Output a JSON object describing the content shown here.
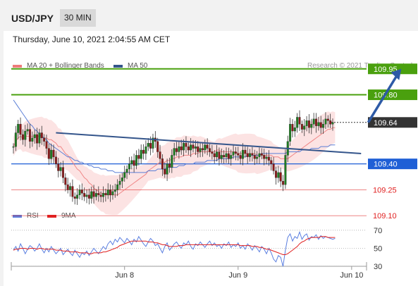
{
  "header": {
    "symbol": "USD/JPY",
    "interval": "30 MIN",
    "datetime": "Thursday, June 10, 2021 2:04:55 AM CET"
  },
  "legend": {
    "bollinger": {
      "label": "MA 20 + Bollinger Bands",
      "color": "#ee7b7b"
    },
    "ma50": {
      "label": "MA 50",
      "color": "#34558b"
    }
  },
  "credit": "Research © 2021 Trading Central",
  "chart_data": {
    "type": "candlestick",
    "price_scale": [
      109.05,
      110.0
    ],
    "current_price": "109.64",
    "levels": [
      {
        "value": 109.95,
        "label": "109.95",
        "kind": "resistance",
        "color": "#4aa00e"
      },
      {
        "value": 109.8,
        "label": "109.80",
        "kind": "resistance",
        "color": "#4aa00e"
      },
      {
        "value": 109.4,
        "label": "109.40",
        "kind": "pivot",
        "color": "#1f5fd6"
      },
      {
        "value": 109.25,
        "label": "109.25",
        "kind": "support",
        "color": "#e02020"
      },
      {
        "value": 109.1,
        "label": "109.10",
        "kind": "support",
        "color": "#e02020"
      }
    ],
    "x_ticks": [
      {
        "label": "Jun 8",
        "index": 47
      },
      {
        "label": "Jun 9",
        "index": 95
      },
      {
        "label": "Jun 10",
        "index": 143
      }
    ],
    "closes": [
      109.5,
      109.58,
      109.63,
      109.57,
      109.54,
      109.59,
      109.6,
      109.53,
      109.55,
      109.57,
      109.52,
      109.58,
      109.55,
      109.53,
      109.49,
      109.43,
      109.48,
      109.44,
      109.4,
      109.36,
      109.38,
      109.32,
      109.28,
      109.25,
      109.27,
      109.21,
      109.2,
      109.22,
      109.25,
      109.23,
      109.21,
      109.22,
      109.2,
      109.24,
      109.21,
      109.23,
      109.22,
      109.21,
      109.23,
      109.22,
      109.25,
      109.22,
      109.24,
      109.25,
      109.28,
      109.3,
      109.32,
      109.35,
      109.37,
      109.4,
      109.42,
      109.39,
      109.45,
      109.43,
      109.48,
      109.46,
      109.5,
      109.52,
      109.49,
      109.55,
      109.53,
      109.47,
      109.43,
      109.37,
      109.34,
      109.4,
      109.38,
      109.45,
      109.49,
      109.47,
      109.5,
      109.48,
      109.52,
      109.5,
      109.48,
      109.51,
      109.49,
      109.5,
      109.47,
      109.49,
      109.48,
      109.51,
      109.49,
      109.47,
      109.46,
      109.44,
      109.47,
      109.43,
      109.45,
      109.44,
      109.46,
      109.43,
      109.45,
      109.47,
      109.46,
      109.45,
      109.43,
      109.48,
      109.46,
      109.44,
      109.46,
      109.45,
      109.43,
      109.44,
      109.46,
      109.45,
      109.43,
      109.44,
      109.42,
      109.4,
      109.36,
      109.32,
      109.35,
      109.3,
      109.28,
      109.45,
      109.53,
      109.63,
      109.59,
      109.61,
      109.67,
      109.63,
      109.6,
      109.62,
      109.65,
      109.61,
      109.63,
      109.66,
      109.62,
      109.64,
      109.61,
      109.63,
      109.66,
      109.65,
      109.63,
      109.64
    ],
    "ma20": [
      109.5,
      109.53,
      109.55,
      109.56,
      109.55,
      109.56,
      109.56,
      109.56,
      109.56,
      109.56,
      109.56,
      109.56,
      109.56,
      109.55,
      109.55,
      109.54,
      109.54,
      109.53,
      109.52,
      109.5,
      109.5,
      109.48,
      109.46,
      109.45,
      109.43,
      109.41,
      109.39,
      109.37,
      109.36,
      109.34,
      109.32,
      109.31,
      109.29,
      109.28,
      109.26,
      109.25,
      109.24,
      109.23,
      109.23,
      109.22,
      109.22,
      109.22,
      109.22,
      109.22,
      109.22,
      109.23,
      109.24,
      109.25,
      109.26,
      109.27,
      109.28,
      109.29,
      109.3,
      109.31,
      109.32,
      109.33,
      109.34,
      109.36,
      109.37,
      109.38,
      109.39,
      109.4,
      109.41,
      109.41,
      109.41,
      109.42,
      109.42,
      109.43,
      109.43,
      109.44,
      109.44,
      109.44,
      109.45,
      109.45,
      109.45,
      109.45,
      109.46,
      109.46,
      109.46,
      109.47,
      109.47,
      109.47,
      109.47,
      109.47,
      109.47,
      109.47,
      109.48,
      109.48,
      109.47,
      109.47,
      109.47,
      109.47,
      109.47,
      109.47,
      109.47,
      109.46,
      109.46,
      109.46,
      109.46,
      109.46,
      109.46,
      109.46,
      109.46,
      109.45,
      109.45,
      109.45,
      109.45,
      109.45,
      109.45,
      109.45,
      109.44,
      109.44,
      109.44,
      109.43,
      109.43,
      109.43,
      109.43,
      109.44,
      109.45,
      109.46,
      109.47,
      109.48,
      109.49,
      109.5,
      109.51,
      109.52,
      109.53,
      109.54,
      109.55,
      109.56,
      109.57,
      109.58,
      109.59,
      109.6,
      109.6,
      109.61,
      109.61
    ],
    "ma50": [
      109.77,
      109.75,
      109.73,
      109.71,
      109.69,
      109.67,
      109.65,
      109.63,
      109.62,
      109.6,
      109.59,
      109.57,
      109.56,
      109.55,
      109.54,
      109.52,
      109.51,
      109.5,
      109.49,
      109.48,
      109.47,
      109.46,
      109.45,
      109.44,
      109.44,
      109.43,
      109.42,
      109.42,
      109.41,
      109.41,
      109.4,
      109.4,
      109.39,
      109.39,
      109.38,
      109.38,
      109.38,
      109.37,
      109.37,
      109.37,
      109.36,
      109.36,
      109.36,
      109.35,
      109.35,
      109.35,
      109.35,
      109.35,
      109.35,
      109.35,
      109.35,
      109.35,
      109.35,
      109.35,
      109.35,
      109.35,
      109.35,
      109.36,
      109.36,
      109.36,
      109.36,
      109.37,
      109.37,
      109.37,
      109.37,
      109.38,
      109.38,
      109.38,
      109.38,
      109.38,
      109.39,
      109.39,
      109.39,
      109.4,
      109.4,
      109.4,
      109.4,
      109.41,
      109.41,
      109.41,
      109.41,
      109.41,
      109.42,
      109.42,
      109.42,
      109.42,
      109.42,
      109.43,
      109.43,
      109.43,
      109.43,
      109.43,
      109.43,
      109.44,
      109.44,
      109.44,
      109.44,
      109.44,
      109.44,
      109.45,
      109.45,
      109.45,
      109.45,
      109.45,
      109.45,
      109.46,
      109.46,
      109.46,
      109.46,
      109.46,
      109.46,
      109.46,
      109.46,
      109.46,
      109.46,
      109.46,
      109.47,
      109.47,
      109.47,
      109.47,
      109.47,
      109.47,
      109.48,
      109.48,
      109.48,
      109.48,
      109.49,
      109.49,
      109.49,
      109.49,
      109.5,
      109.5,
      109.5,
      109.5,
      109.51,
      109.51,
      109.51
    ],
    "trendline": {
      "from": {
        "index": 18,
        "value": 109.58
      },
      "to": {
        "index": 147,
        "value": 109.46
      }
    },
    "forecast_arrow": {
      "from": {
        "index": 150,
        "value": 109.64
      },
      "to": {
        "index": 164,
        "value": 109.95
      }
    },
    "rsi": {
      "legend": [
        {
          "label": "RSI",
          "color": "#5b7fe0"
        },
        {
          "label": "9MA",
          "color": "#e02020"
        }
      ],
      "scale": [
        20,
        80
      ],
      "levels": [
        "70",
        "50",
        "30"
      ],
      "values": [
        48,
        52,
        47,
        55,
        50,
        44,
        49,
        53,
        51,
        47,
        50,
        55,
        49,
        45,
        50,
        46,
        52,
        48,
        44,
        47,
        50,
        43,
        46,
        49,
        45,
        42,
        48,
        44,
        40,
        45,
        43,
        47,
        42,
        46,
        50,
        47,
        44,
        48,
        52,
        49,
        55,
        58,
        54,
        60,
        57,
        62,
        59,
        56,
        61,
        58,
        54,
        60,
        57,
        63,
        59,
        55,
        52,
        57,
        61,
        58,
        53,
        55,
        50,
        45,
        52,
        56,
        48,
        51,
        55,
        57,
        53,
        50,
        56,
        54,
        58,
        52,
        49,
        55,
        53,
        57,
        54,
        51,
        55,
        58,
        53,
        56,
        52,
        54,
        50,
        55,
        53,
        57,
        51,
        54,
        52,
        56,
        50,
        53,
        49,
        55,
        52,
        48,
        53,
        50,
        46,
        52,
        49,
        44,
        50,
        45,
        38,
        35,
        42,
        40,
        30,
        48,
        62,
        66,
        58,
        63,
        61,
        68,
        60,
        64,
        66,
        59,
        63,
        62,
        65,
        60,
        64,
        61,
        63,
        62,
        61,
        60,
        61
      ],
      "ma9": [
        48,
        49,
        49,
        50,
        50,
        50,
        49,
        50,
        50,
        50,
        49,
        50,
        50,
        49,
        49,
        49,
        49,
        49,
        48,
        48,
        48,
        47,
        47,
        47,
        46,
        46,
        46,
        46,
        45,
        45,
        45,
        45,
        44,
        44,
        45,
        45,
        45,
        45,
        46,
        46,
        47,
        48,
        49,
        50,
        51,
        53,
        54,
        55,
        56,
        57,
        58,
        58,
        58,
        58,
        58,
        58,
        58,
        57,
        57,
        57,
        56,
        56,
        55,
        54,
        54,
        53,
        52,
        52,
        52,
        52,
        53,
        53,
        53,
        54,
        54,
        54,
        54,
        54,
        54,
        54,
        54,
        54,
        54,
        54,
        54,
        54,
        54,
        54,
        54,
        54,
        54,
        54,
        54,
        54,
        54,
        54,
        53,
        53,
        53,
        53,
        53,
        52,
        52,
        52,
        51,
        51,
        50,
        49,
        49,
        48,
        47,
        46,
        45,
        44,
        43,
        43,
        44,
        46,
        48,
        50,
        52,
        55,
        57,
        58,
        60,
        61,
        62,
        62,
        62,
        62,
        63,
        63,
        63,
        62,
        62,
        62,
        62
      ]
    }
  }
}
